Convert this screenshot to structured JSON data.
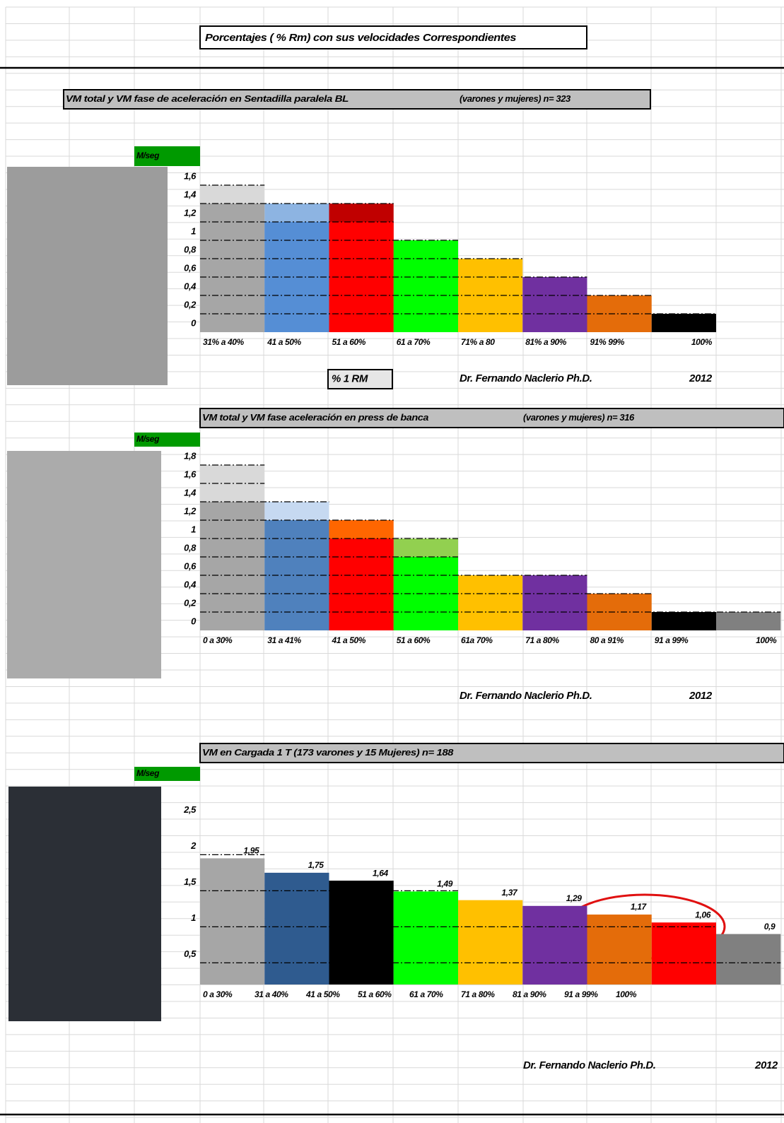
{
  "header": {
    "title": "Porcentajes  ( % Rm) con sus velocidades Correspondientes"
  },
  "chart_data": [
    {
      "type": "bar",
      "title": "VM total y VM fase de aceleración en Sentadilla paralela BL",
      "subtitle": "(varones y mujeres) n= 323",
      "ylabel": "M/seg",
      "xlabel": "% 1 RM",
      "author": "Dr. Fernando Naclerio Ph.D.",
      "year": "2012",
      "categories": [
        "31% a 40%",
        "41 a 50%",
        "51 a 60%",
        "61 a 70%",
        "71% a 80",
        "81% a 90%",
        "91% 99%",
        "100%"
      ],
      "series": [
        {
          "values": [
            1.6,
            1.4,
            1.4,
            null,
            null,
            null,
            null,
            null
          ],
          "colors": [
            "#d9d9d9",
            "#8db4e2",
            "#c00000",
            null,
            null,
            null,
            null,
            null
          ]
        },
        {
          "values": [
            1.4,
            1.2,
            1.2,
            1.0,
            0.8,
            0.6,
            0.4,
            0.2
          ],
          "colors": [
            "#a6a6a6",
            "#558ed5",
            "#ff0000",
            "#00ff00",
            "#ffc000",
            "#7030a0",
            "#e46c0a",
            "#000000"
          ]
        }
      ],
      "ylim": [
        0,
        1.6
      ],
      "yticks": [
        {
          "value": 1.6,
          "label": "1,6"
        },
        {
          "value": 1.4,
          "label": "1,4"
        },
        {
          "value": 1.2,
          "label": "1,2"
        },
        1,
        {
          "value": 0.8,
          "label": "0,8"
        },
        {
          "value": 0.6,
          "label": "0,6"
        },
        {
          "value": 0.4,
          "label": "0,4"
        },
        {
          "value": 0.2,
          "label": "0,2"
        },
        0
      ]
    },
    {
      "type": "bar",
      "title": "VM total y VM fase aceleración en press de banca",
      "subtitle": "(varones y mujeres) n= 316",
      "ylabel": "M/seg",
      "author": "Dr. Fernando Naclerio Ph.D.",
      "year": "2012",
      "categories": [
        "0 a 30%",
        "31 a 41%",
        "41 a 50%",
        "51 a 60%",
        "61a 70%",
        "71 a 80%",
        "80 a 91%",
        "91 a 99%",
        "100%"
      ],
      "series": [
        {
          "values": [
            1.8,
            1.4,
            1.2,
            1.0,
            null,
            null,
            null,
            null,
            null
          ],
          "colors": [
            "#d9d9d9",
            "#c6d9f1",
            "#ff6600",
            "#92d050",
            null,
            null,
            null,
            null,
            null
          ]
        },
        {
          "values": [
            1.4,
            1.2,
            1.0,
            0.8,
            0.6,
            0.6,
            0.4,
            0.2,
            0.2
          ],
          "colors": [
            "#a6a6a6",
            "#4f81bd",
            "#ff0000",
            "#00ff00",
            "#ffc000",
            "#7030a0",
            "#e46c0a",
            "#000000",
            "#808080"
          ]
        }
      ],
      "ylim": [
        0,
        1.8
      ],
      "yticks": [
        {
          "value": 1.8,
          "label": "1,8"
        },
        {
          "value": 1.6,
          "label": "1,6"
        },
        {
          "value": 1.4,
          "label": "1,4"
        },
        {
          "value": 1.2,
          "label": "1,2"
        },
        1,
        {
          "value": 0.8,
          "label": "0,8"
        },
        {
          "value": 0.6,
          "label": "0,6"
        },
        {
          "value": 0.4,
          "label": "0,4"
        },
        {
          "value": 0.2,
          "label": "0,2"
        },
        0
      ]
    },
    {
      "type": "bar",
      "title": "VM en Cargada 1 T (173 varones y 15 Mujeres) n= 188",
      "ylabel": "M/seg",
      "author": "Dr. Fernando Naclerio Ph.D.",
      "year": "2012",
      "categories": [
        "0 a  30%",
        "31 a 40%",
        "41 a 50%",
        "51 a 60%",
        "61 a 70%",
        "71 a 80%",
        "81 a 90%",
        "91 a 99%",
        "100%"
      ],
      "series": [
        {
          "values": [
            1.95,
            1.75,
            1.64,
            1.49,
            1.37,
            1.29,
            1.17,
            1.06,
            0.9
          ],
          "value_labels": [
            "1,95",
            "1,75",
            "1,64",
            "1,49",
            "1,37",
            "1,29",
            "1,17",
            "1,06",
            "0,9"
          ],
          "colors": [
            "#a6a6a6",
            "#2f5b8f",
            "#000000",
            "#00ff00",
            "#ffc000",
            "#7030a0",
            "#e46c0a",
            "#ff0000",
            "#808080"
          ]
        }
      ],
      "ylim": [
        0.2,
        2.7
      ],
      "yticks": [
        {
          "value": 2.5,
          "label": "2,5"
        },
        2,
        {
          "value": 1.5,
          "label": "1,5"
        },
        1,
        {
          "value": 0.5,
          "label": "0,5"
        }
      ]
    }
  ]
}
